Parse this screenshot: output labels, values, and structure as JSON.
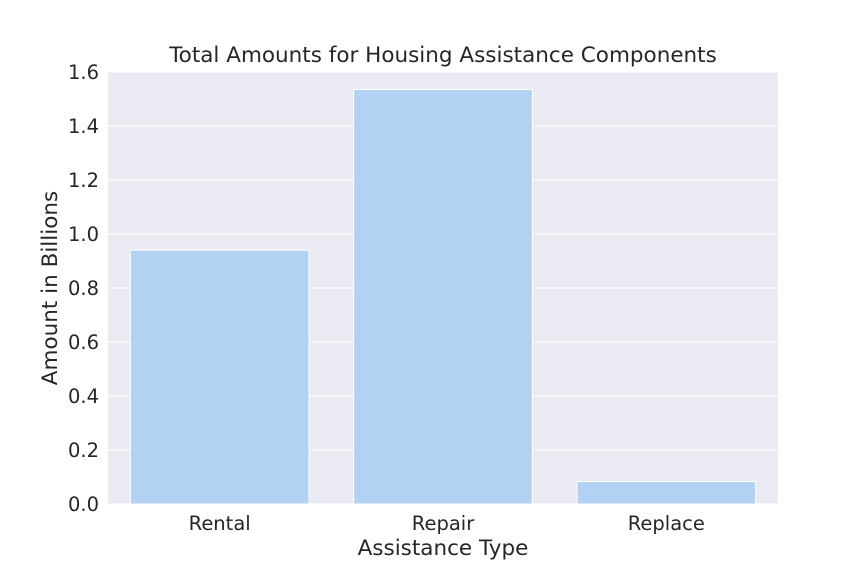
{
  "chart_data": {
    "type": "bar",
    "title": "Total Amounts for Housing Assistance Components",
    "xlabel": "Assistance Type",
    "ylabel": "Amount in Billions",
    "categories": [
      "Rental",
      "Repair",
      "Replace"
    ],
    "values": [
      0.94,
      1.535,
      0.083
    ],
    "ylim": [
      0,
      1.6
    ],
    "yticks": [
      "0.0",
      "0.2",
      "0.4",
      "0.6",
      "0.8",
      "1.0",
      "1.2",
      "1.4",
      "1.6"
    ],
    "grid": true,
    "bar_color": "#b3d1f2",
    "background_color": "#eaeaf2",
    "grid_color": "#ffffff"
  }
}
